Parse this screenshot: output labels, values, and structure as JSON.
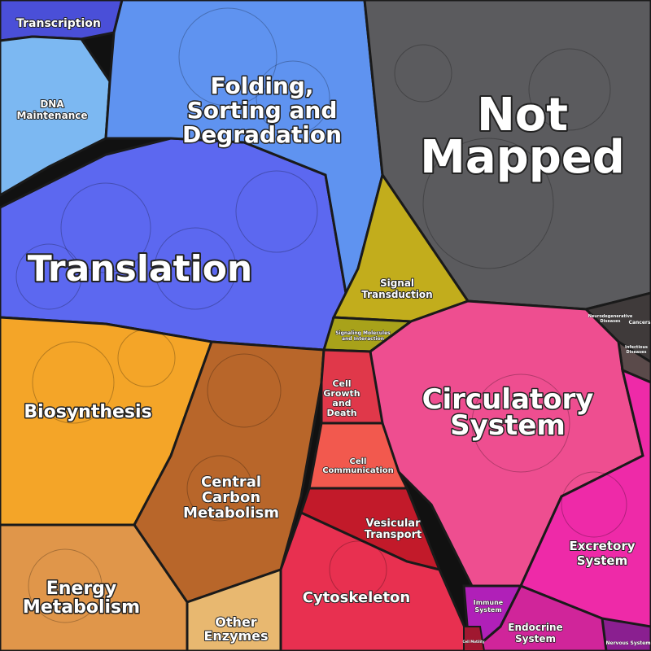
{
  "diagram": {
    "regions": [
      {
        "id": "transcription",
        "lines": [
          "Transcription"
        ],
        "color": "#4a4fd8"
      },
      {
        "id": "dna-maintenance",
        "lines": [
          "DNA",
          "Maintenance"
        ],
        "color": "#7cb8f2"
      },
      {
        "id": "folding",
        "lines": [
          "Folding,",
          "Sorting and",
          "Degradation"
        ],
        "color": "#5f93f0"
      },
      {
        "id": "not-mapped",
        "lines": [
          "Not",
          "Mapped"
        ],
        "color": "#5b5b5e"
      },
      {
        "id": "translation",
        "lines": [
          "Translation"
        ],
        "color": "#5c68f0"
      },
      {
        "id": "signal-transduction",
        "lines": [
          "Signal",
          "Transduction"
        ],
        "color": "#c2ad1c"
      },
      {
        "id": "signaling-molecules",
        "lines": [
          "Signaling Molecules",
          "and Interaction"
        ],
        "color": "#a8a21a"
      },
      {
        "id": "neurodegenerative",
        "lines": [
          "Neurodegenerative",
          "Diseases"
        ],
        "color": "#3f3a3a"
      },
      {
        "id": "cancers",
        "lines": [
          "Cancers"
        ],
        "color": "#4a3c3c"
      },
      {
        "id": "infectious",
        "lines": [
          "Infectious",
          "Diseases"
        ],
        "color": "#5a4a4a"
      },
      {
        "id": "circulatory",
        "lines": [
          "Circulatory",
          "System"
        ],
        "color": "#ee4e90"
      },
      {
        "id": "excretory",
        "lines": [
          "Excretory",
          "System"
        ],
        "color": "#ee2aa8"
      },
      {
        "id": "immune",
        "lines": [
          "Immune",
          "System"
        ],
        "color": "#b020b8"
      },
      {
        "id": "endocrine",
        "lines": [
          "Endocrine",
          "System"
        ],
        "color": "#d0259a"
      },
      {
        "id": "nervous",
        "lines": [
          "Nervous System"
        ],
        "color": "#8a1f90"
      },
      {
        "id": "biosynthesis",
        "lines": [
          "Biosynthesis"
        ],
        "color": "#f4a528"
      },
      {
        "id": "central-carbon",
        "lines": [
          "Central",
          "Carbon",
          "Metabolism"
        ],
        "color": "#b8662a"
      },
      {
        "id": "cell-growth",
        "lines": [
          "Cell",
          "Growth",
          "and",
          "Death"
        ],
        "color": "#e0384a"
      },
      {
        "id": "cell-communication",
        "lines": [
          "Cell",
          "Communication"
        ],
        "color": "#f2594e"
      },
      {
        "id": "vesicular",
        "lines": [
          "Vesicular",
          "Transport"
        ],
        "color": "#c21a2a"
      },
      {
        "id": "cytoskeleton",
        "lines": [
          "Cytoskeleton"
        ],
        "color": "#e83050"
      },
      {
        "id": "energy",
        "lines": [
          "Energy",
          "Metabolism"
        ],
        "color": "#e0964a"
      },
      {
        "id": "other-enzymes",
        "lines": [
          "Other",
          "Enzymes"
        ],
        "color": "#e8b870"
      },
      {
        "id": "cell-motility",
        "lines": [
          "Cell Motility"
        ],
        "color": "#a01830"
      }
    ]
  }
}
